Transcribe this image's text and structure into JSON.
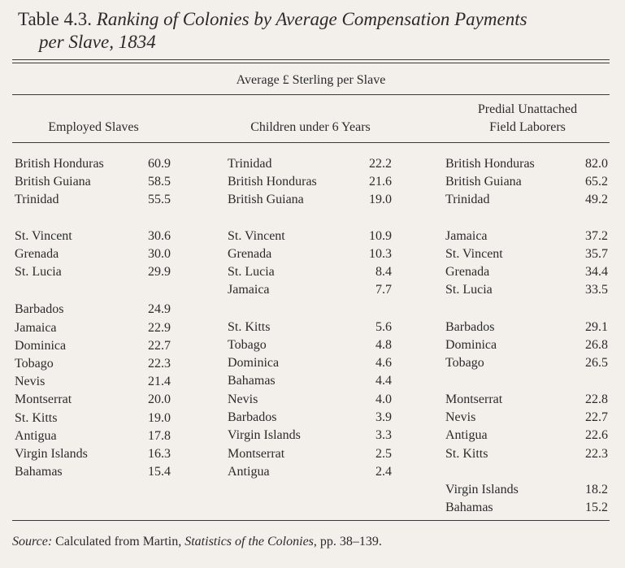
{
  "title": {
    "number": "Table 4.3.",
    "line1": "Ranking of Colonies by Average Compensation Payments",
    "line2": "per Slave, 1834"
  },
  "spanner": "Average £ Sterling per Slave",
  "columns": {
    "employed": "Employed Slaves",
    "children": "Children under 6 Years",
    "predial_line1": "Predial Unattached",
    "predial_line2": "Field Laborers"
  },
  "employed": [
    {
      "name": "British Honduras",
      "value": "60.9"
    },
    {
      "name": "British Guiana",
      "value": "58.5"
    },
    {
      "name": "Trinidad",
      "value": "55.5"
    },
    {
      "name": "St. Vincent",
      "value": "30.6"
    },
    {
      "name": "Grenada",
      "value": "30.0"
    },
    {
      "name": "St. Lucia",
      "value": "29.9"
    },
    {
      "name": "Barbados",
      "value": "24.9"
    },
    {
      "name": "Jamaica",
      "value": "22.9"
    },
    {
      "name": "Dominica",
      "value": "22.7"
    },
    {
      "name": "Tobago",
      "value": "22.3"
    },
    {
      "name": "Nevis",
      "value": "21.4"
    },
    {
      "name": "Montserrat",
      "value": "20.0"
    },
    {
      "name": "St. Kitts",
      "value": "19.0"
    },
    {
      "name": "Antigua",
      "value": "17.8"
    },
    {
      "name": "Virgin Islands",
      "value": "16.3"
    },
    {
      "name": "Bahamas",
      "value": "15.4"
    }
  ],
  "children": [
    {
      "name": "Trinidad",
      "value": "22.2"
    },
    {
      "name": "British Honduras",
      "value": "21.6"
    },
    {
      "name": "British Guiana",
      "value": "19.0"
    },
    {
      "name": "St. Vincent",
      "value": "10.9"
    },
    {
      "name": "Grenada",
      "value": "10.3"
    },
    {
      "name": "St. Lucia",
      "value": "8.4"
    },
    {
      "name": "Jamaica",
      "value": "7.7"
    },
    {
      "name": "St. Kitts",
      "value": "5.6"
    },
    {
      "name": "Tobago",
      "value": "4.8"
    },
    {
      "name": "Dominica",
      "value": "4.6"
    },
    {
      "name": "Bahamas",
      "value": "4.4"
    },
    {
      "name": "Nevis",
      "value": "4.0"
    },
    {
      "name": "Barbados",
      "value": "3.9"
    },
    {
      "name": "Virgin Islands",
      "value": "3.3"
    },
    {
      "name": "Montserrat",
      "value": "2.5"
    },
    {
      "name": "Antigua",
      "value": "2.4"
    }
  ],
  "predial": [
    {
      "name": "British Honduras",
      "value": "82.0"
    },
    {
      "name": "British Guiana",
      "value": "65.2"
    },
    {
      "name": "Trinidad",
      "value": "49.2"
    },
    {
      "name": "Jamaica",
      "value": "37.2"
    },
    {
      "name": "St. Vincent",
      "value": "35.7"
    },
    {
      "name": "Grenada",
      "value": "34.4"
    },
    {
      "name": "St. Lucia",
      "value": "33.5"
    },
    {
      "name": "Barbados",
      "value": "29.1"
    },
    {
      "name": "Dominica",
      "value": "26.8"
    },
    {
      "name": "Tobago",
      "value": "26.5"
    },
    {
      "name": "Montserrat",
      "value": "22.8"
    },
    {
      "name": "Nevis",
      "value": "22.7"
    },
    {
      "name": "Antigua",
      "value": "22.6"
    },
    {
      "name": "St. Kitts",
      "value": "22.3"
    },
    {
      "name": "Virgin Islands",
      "value": "18.2"
    },
    {
      "name": "Bahamas",
      "value": "15.2"
    }
  ],
  "source": {
    "label": "Source:",
    "text1": "Calculated from Martin,",
    "work": "Statistics of the Colonies",
    "text2": ", pp. 38–139."
  }
}
